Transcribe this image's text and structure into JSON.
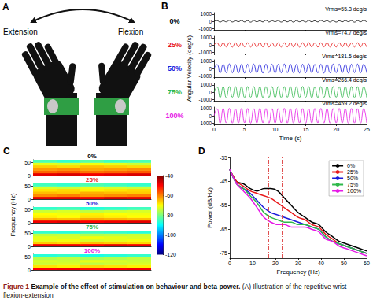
{
  "panel_a": {
    "label": "A",
    "left_text": "Extension",
    "right_text": "Flexion"
  },
  "chart_data": [
    {
      "label": "B",
      "type": "line",
      "ylabel": "Angular Velocity (deg/s)",
      "xlabel": "Time (s)",
      "x": [
        0,
        0.5,
        1,
        1.5,
        2,
        2.5,
        3,
        3.5,
        4,
        4.5,
        5,
        5.5,
        6,
        6.5,
        7,
        7.5,
        8,
        8.5,
        9,
        9.5,
        10,
        10.5,
        11,
        11.5,
        12,
        12.5,
        13,
        13.5,
        14,
        14.5,
        15,
        15.5,
        16,
        16.5,
        17,
        17.5,
        18,
        18.5,
        19,
        19.5,
        20,
        20.5,
        21,
        21.5,
        22,
        22.5,
        23,
        23.5,
        24,
        24.5,
        25
      ],
      "xlim": [
        0,
        25
      ],
      "xticks": [
        0,
        5,
        10,
        15,
        20,
        25
      ],
      "ylim": [
        -1200,
        1200
      ],
      "yticks": [
        -1000,
        0,
        1000
      ],
      "series": [
        {
          "name": "0%",
          "color": "#000000",
          "annotation": "Vrms=55.3 deg/s",
          "values": [
            0,
            90,
            -110,
            60,
            -80,
            120,
            -100,
            70,
            -60,
            110,
            -90,
            80,
            -120,
            100,
            -70,
            60,
            -90,
            130,
            -100,
            80,
            -60,
            90,
            -110,
            70,
            -80,
            100,
            -120,
            90,
            -70,
            60,
            -100,
            110,
            -80,
            70,
            -90,
            120,
            -60,
            80,
            -100,
            90,
            -110,
            70,
            -80,
            100,
            -60,
            90,
            -120,
            80,
            -70,
            110,
            -90
          ]
        },
        {
          "name": "25%",
          "color": "#e8191b",
          "annotation": "Vrms=74.7 deg/s",
          "values": [
            0,
            280,
            -300,
            310,
            -290,
            300,
            -320,
            290,
            -300,
            310,
            -280,
            300,
            -310,
            290,
            -300,
            320,
            -290,
            300,
            -310,
            280,
            -300,
            290,
            -310,
            300,
            -290,
            310,
            -300,
            280,
            -320,
            300,
            -290,
            310,
            -300,
            290,
            -310,
            300,
            -280,
            320,
            -300,
            290,
            -310,
            300,
            -290,
            310,
            -300,
            280,
            -310,
            300,
            -290,
            310,
            -300
          ]
        },
        {
          "name": "50%",
          "color": "#1a1adb",
          "annotation": "Vrms=181.5 deg/s",
          "values": [
            0,
            550,
            -620,
            600,
            -580,
            640,
            -600,
            570,
            -610,
            590,
            -630,
            600,
            -580,
            620,
            -600,
            590,
            -640,
            610,
            -570,
            600,
            -620,
            580,
            -600,
            630,
            -590,
            610,
            -600,
            570,
            -620,
            600,
            -590,
            640,
            -600,
            580,
            -610,
            600,
            -630,
            590,
            -600,
            620,
            -580,
            610,
            -600,
            590,
            -630,
            600,
            -570,
            620,
            -600,
            610,
            -590
          ]
        },
        {
          "name": "75%",
          "color": "#2fb84a",
          "annotation": "Vrms=266.4 deg/s",
          "values": [
            0,
            720,
            -760,
            740,
            -780,
            750,
            -730,
            770,
            -750,
            740,
            -770,
            760,
            -740,
            750,
            -780,
            730,
            -760,
            770,
            -740,
            750,
            -760,
            740,
            -770,
            750,
            -730,
            780,
            -750,
            740,
            -760,
            770,
            -740,
            750,
            -780,
            730,
            -760,
            770,
            -750,
            740,
            -770,
            760,
            -730,
            750,
            -760,
            780,
            -740,
            750,
            -770,
            730,
            -760,
            750,
            -740
          ]
        },
        {
          "name": "100%",
          "color": "#e619e6",
          "annotation": "Vrms=459.2 deg/s",
          "values": [
            0,
            980,
            -1020,
            1000,
            -990,
            1030,
            -1010,
            970,
            -1000,
            1020,
            -980,
            1010,
            -1030,
            990,
            -1000,
            1020,
            -970,
            1000,
            -1010,
            990,
            -1020,
            1000,
            -980,
            1030,
            -1000,
            990,
            -1010,
            1020,
            -990,
            1000,
            -1030,
            980,
            -1000,
            1010,
            -990,
            1020,
            -1000,
            970,
            -1010,
            1000,
            -990,
            1020,
            -1000,
            980,
            -1030,
            1010,
            -1000,
            990,
            -1020,
            1000,
            -980
          ]
        }
      ]
    },
    {
      "label": "C",
      "type": "heatmap",
      "ylabel": "Frequency (Hz)",
      "tick_labels": "y",
      "xlim": [
        0,
        25
      ],
      "ylim": [
        0,
        60
      ],
      "yticks": [
        0,
        50
      ],
      "x_edges": [
        0,
        5,
        10,
        15,
        20,
        25
      ],
      "y_edges": [
        0,
        10,
        20,
        30,
        40,
        50,
        60
      ],
      "panels": [
        {
          "name": "0%",
          "color": "#000000",
          "cells": [
            [
              -48,
              -47,
              -49,
              -48,
              -47
            ],
            [
              -58,
              -57,
              -59,
              -58,
              -57
            ],
            [
              -62,
              -61,
              -63,
              -62,
              -61
            ],
            [
              -66,
              -67,
              -65,
              -66,
              -67
            ],
            [
              -72,
              -73,
              -71,
              -72,
              -74
            ],
            [
              -84,
              -86,
              -83,
              -85,
              -84
            ]
          ]
        },
        {
          "name": "25%",
          "color": "#e8191b",
          "cells": [
            [
              -48,
              -48,
              -49,
              -47,
              -48
            ],
            [
              -61,
              -60,
              -62,
              -61,
              -60
            ],
            [
              -65,
              -66,
              -64,
              -65,
              -66
            ],
            [
              -68,
              -67,
              -69,
              -68,
              -67
            ],
            [
              -73,
              -74,
              -72,
              -73,
              -74
            ],
            [
              -85,
              -86,
              -84,
              -85,
              -86
            ]
          ]
        },
        {
          "name": "50%",
          "color": "#1a1adb",
          "cells": [
            [
              -49,
              -48,
              -50,
              -49,
              -48
            ],
            [
              -64,
              -65,
              -63,
              -64,
              -65
            ],
            [
              -69,
              -70,
              -68,
              -69,
              -70
            ],
            [
              -70,
              -71,
              -69,
              -70,
              -71
            ],
            [
              -74,
              -73,
              -75,
              -74,
              -73
            ],
            [
              -86,
              -85,
              -87,
              -86,
              -85
            ]
          ]
        },
        {
          "name": "75%",
          "color": "#2fb84a",
          "cells": [
            [
              -49,
              -49,
              -50,
              -48,
              -49
            ],
            [
              -66,
              -67,
              -65,
              -66,
              -67
            ],
            [
              -72,
              -71,
              -73,
              -72,
              -71
            ],
            [
              -72,
              -73,
              -71,
              -72,
              -73
            ],
            [
              -75,
              -74,
              -76,
              -75,
              -74
            ],
            [
              -86,
              -87,
              -85,
              -86,
              -87
            ]
          ]
        },
        {
          "name": "100%",
          "color": "#e619e6",
          "cells": [
            [
              -50,
              -49,
              -51,
              -50,
              -49
            ],
            [
              -68,
              -69,
              -67,
              -68,
              -69
            ],
            [
              -74,
              -73,
              -75,
              -74,
              -73
            ],
            [
              -73,
              -74,
              -72,
              -73,
              -74
            ],
            [
              -76,
              -75,
              -77,
              -76,
              -75
            ],
            [
              -87,
              -86,
              -88,
              -87,
              -86
            ]
          ]
        }
      ],
      "colorbar": {
        "range": [
          -120,
          -40
        ],
        "ticks": [
          -40,
          -60,
          -80,
          -100,
          -120
        ]
      }
    },
    {
      "label": "D",
      "type": "line",
      "xlabel": "Frequency (Hz)",
      "ylabel": "Power (dB/Hz)",
      "x": [
        0,
        3,
        6,
        9,
        12,
        15,
        18,
        21,
        24,
        27,
        30,
        33,
        36,
        39,
        42,
        45,
        48,
        51,
        54,
        57,
        60
      ],
      "xlim": [
        0,
        60
      ],
      "xticks": [
        0,
        10,
        20,
        30,
        40,
        50,
        60
      ],
      "ylim": [
        -77,
        -35
      ],
      "yticks": [
        -75,
        -65,
        -55,
        -45,
        -35
      ],
      "legend": "upper right",
      "vlines": [
        17,
        23
      ],
      "series": [
        {
          "name": "0%",
          "color": "#000000",
          "values": [
            -40,
            -45,
            -46,
            -48,
            -49,
            -48,
            -48,
            -49,
            -52,
            -55,
            -58,
            -60,
            -62,
            -63,
            -66,
            -68,
            -70,
            -71,
            -72,
            -73,
            -74
          ]
        },
        {
          "name": "25%",
          "color": "#e8191b",
          "values": [
            -40,
            -45,
            -47,
            -49,
            -50,
            -51,
            -52,
            -54,
            -56,
            -58,
            -60,
            -61,
            -63,
            -64,
            -67,
            -69,
            -71,
            -72,
            -73,
            -74,
            -75
          ]
        },
        {
          "name": "50%",
          "color": "#1a1adb",
          "values": [
            -40,
            -46,
            -48,
            -50,
            -53,
            -56,
            -58,
            -59,
            -60,
            -61,
            -62,
            -63,
            -64,
            -65,
            -68,
            -70,
            -71,
            -72,
            -73,
            -74,
            -75
          ]
        },
        {
          "name": "75%",
          "color": "#2fb84a",
          "values": [
            -40,
            -46,
            -48,
            -51,
            -54,
            -58,
            -60,
            -61,
            -62,
            -62,
            -63,
            -63,
            -64,
            -65,
            -68,
            -70,
            -71,
            -72,
            -73,
            -74,
            -75
          ]
        },
        {
          "name": "100%",
          "color": "#e619e6",
          "values": [
            -40,
            -46,
            -49,
            -52,
            -56,
            -60,
            -62,
            -63,
            -63,
            -64,
            -64,
            -64,
            -65,
            -66,
            -69,
            -70,
            -72,
            -73,
            -74,
            -75,
            -76
          ]
        }
      ]
    }
  ],
  "caption": {
    "label": "Figure 1",
    "title": "Example of the effect of stimulation on behaviour and beta power.",
    "text": "(A) Illustration of the repetitive wrist flexion-extension"
  }
}
